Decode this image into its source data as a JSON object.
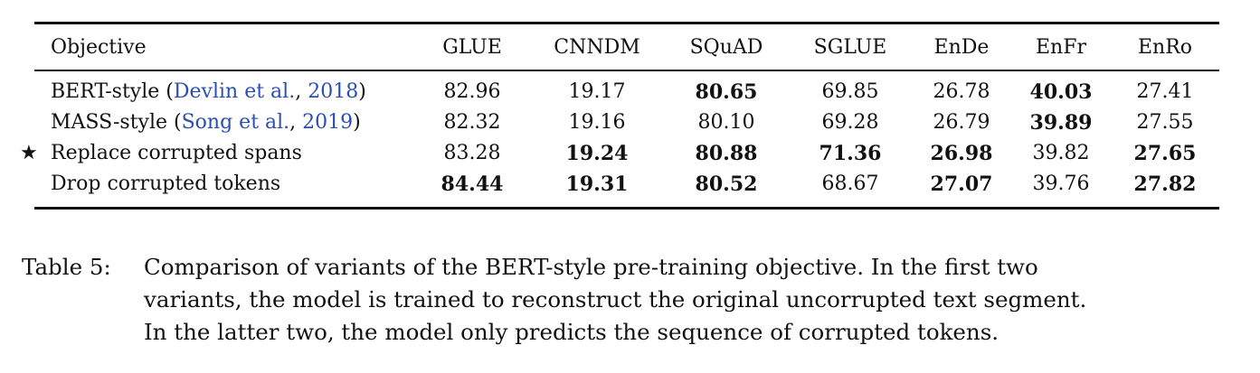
{
  "table": {
    "columns": [
      "Objective",
      "GLUE",
      "CNNDM",
      "SQuAD",
      "SGLUE",
      "EnDe",
      "EnFr",
      "EnRo"
    ],
    "rows": [
      {
        "objective_prefix": "BERT-style (",
        "cite_author": "Devlin et al.",
        "cite_sep": ", ",
        "cite_year": "2018",
        "objective_suffix": ")",
        "starred": false,
        "values": [
          "82.96",
          "19.17",
          "80.65",
          "69.85",
          "26.78",
          "40.03",
          "27.41"
        ],
        "bold": [
          false,
          false,
          true,
          false,
          false,
          true,
          false
        ]
      },
      {
        "objective_prefix": "MASS-style (",
        "cite_author": "Song et al.",
        "cite_sep": ", ",
        "cite_year": "2019",
        "objective_suffix": ")",
        "starred": false,
        "values": [
          "82.32",
          "19.16",
          "80.10",
          "69.28",
          "26.79",
          "39.89",
          "27.55"
        ],
        "bold": [
          false,
          false,
          false,
          false,
          false,
          true,
          false
        ]
      },
      {
        "objective_prefix": "Replace corrupted spans",
        "cite_author": "",
        "cite_sep": "",
        "cite_year": "",
        "objective_suffix": "",
        "starred": true,
        "star_glyph": "★",
        "values": [
          "83.28",
          "19.24",
          "80.88",
          "71.36",
          "26.98",
          "39.82",
          "27.65"
        ],
        "bold": [
          false,
          true,
          true,
          true,
          true,
          false,
          true
        ]
      },
      {
        "objective_prefix": "Drop corrupted tokens",
        "cite_author": "",
        "cite_sep": "",
        "cite_year": "",
        "objective_suffix": "",
        "starred": false,
        "values": [
          "84.44",
          "19.31",
          "80.52",
          "68.67",
          "27.07",
          "39.76",
          "27.82"
        ],
        "bold": [
          true,
          true,
          true,
          false,
          true,
          false,
          true
        ]
      }
    ]
  },
  "caption": {
    "label": "Table 5:",
    "lines": [
      "Comparison of variants of the BERT-style pre-training objective. In the first two",
      "variants, the model is trained to reconstruct the original uncorrupted text segment.",
      "In the latter two, the model only predicts the sequence of corrupted tokens."
    ]
  },
  "colors": {
    "citation_link": "#2b4fb0",
    "text": "#111111"
  }
}
